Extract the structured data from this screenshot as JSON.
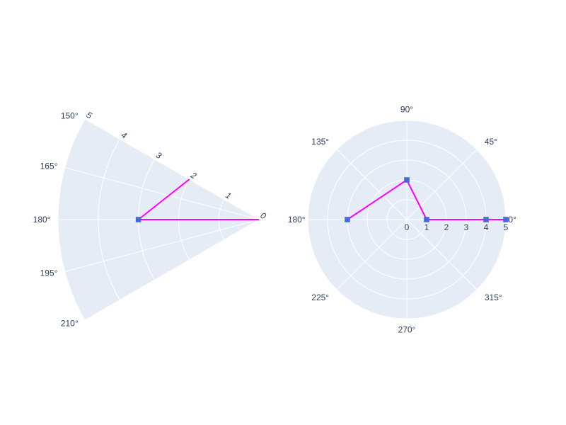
{
  "chart_data": [
    {
      "type": "polar-line",
      "angular_range_deg": [
        150,
        210
      ],
      "radial_range": [
        0,
        5
      ],
      "radial_ticks": [
        0,
        1,
        2,
        3,
        4,
        5
      ],
      "angular_tick_labels": [
        "150°",
        "165°",
        "180°",
        "195°",
        "210°"
      ],
      "angular_tick_values": [
        150,
        165,
        180,
        195,
        210
      ],
      "series": [
        {
          "points": [
            {
              "r": 0,
              "theta": 0,
              "marker": false
            },
            {
              "r": 3,
              "theta": 180,
              "marker": true
            },
            {
              "r": 2,
              "theta": 150,
              "marker": false
            }
          ],
          "color": "#ff00ff",
          "marker_color": "#4169e1"
        }
      ],
      "background": "#e5ecf6"
    },
    {
      "type": "polar-line",
      "angular_range_deg": [
        0,
        360
      ],
      "radial_range": [
        0,
        5
      ],
      "radial_ticks": [
        0,
        1,
        2,
        3,
        4,
        5
      ],
      "angular_tick_labels": [
        "0°",
        "45°",
        "90°",
        "135°",
        "180°",
        "225°",
        "270°",
        "315°"
      ],
      "angular_tick_values": [
        0,
        45,
        90,
        135,
        180,
        225,
        270,
        315
      ],
      "series": [
        {
          "points": [
            {
              "r": 5,
              "theta": 0,
              "marker": true
            },
            {
              "r": 4,
              "theta": 0,
              "marker": true
            },
            {
              "r": 1,
              "theta": 0,
              "marker": true
            },
            {
              "r": 2,
              "theta": 90,
              "marker": true
            },
            {
              "r": 3,
              "theta": 180,
              "marker": true
            }
          ],
          "color": "#ff00ff",
          "marker_color": "#4169e1"
        }
      ],
      "background": "#e5ecf6"
    }
  ]
}
